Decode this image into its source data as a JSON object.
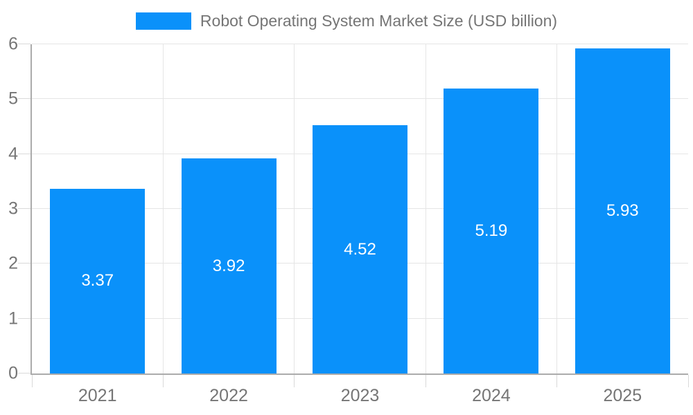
{
  "chart_data": {
    "type": "bar",
    "title": "Robot Operating System Market Size (USD billion)",
    "categories": [
      "2021",
      "2022",
      "2023",
      "2024",
      "2025"
    ],
    "values": [
      3.37,
      3.92,
      4.52,
      5.19,
      5.93
    ],
    "value_labels": [
      "3.37",
      "3.92",
      "4.52",
      "5.19",
      "5.93"
    ],
    "yticks": [
      0,
      1,
      2,
      3,
      4,
      5,
      6
    ],
    "ylim": [
      0,
      6
    ],
    "xlabel": "",
    "ylabel": "",
    "grid": true,
    "legend_position": "top-center",
    "colors": {
      "bar": "#0a91fa",
      "value_text": "#ffffff",
      "axis_text": "#757575",
      "gridline": "#e5e5e5",
      "tick": "#d9d9d9",
      "axis_line": "#ababab"
    }
  }
}
